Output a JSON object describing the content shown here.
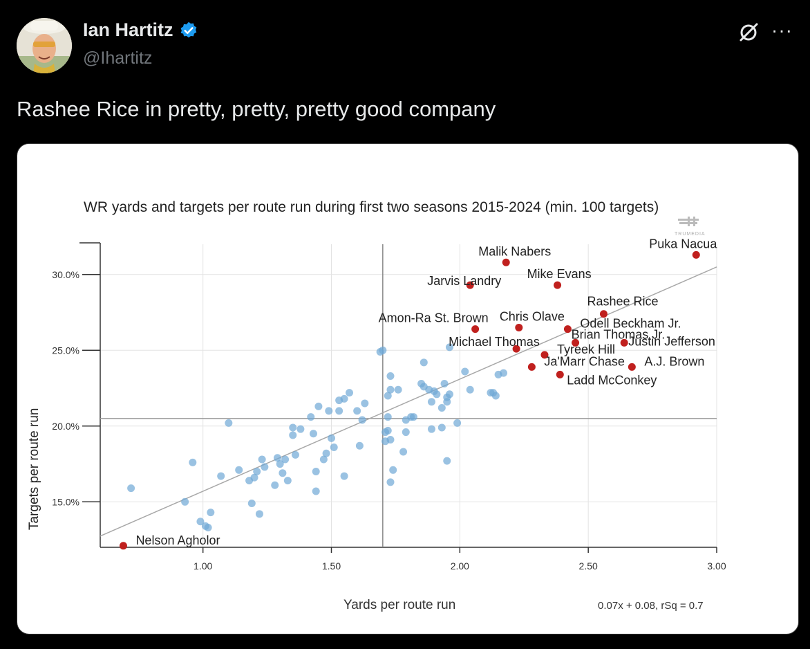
{
  "post": {
    "author_name": "Ian Hartitz",
    "author_handle": "@Ihartitz",
    "text": "Rashee Rice in pretty, pretty, pretty good company",
    "more_label": "···"
  },
  "colors": {
    "verified": "#1d9bf0",
    "highlight": "#c0201e",
    "point": "#6fa8d6"
  },
  "chart_data": {
    "type": "scatter",
    "title": "WR yards and targets per route run during first two seasons 2015-2024 (min. 100 targets)",
    "xlabel": "Yards per route run",
    "ylabel": "Targets per route run",
    "watermark": "TRUMEDIA",
    "xlim": [
      0.6,
      3.0
    ],
    "ylim": [
      12.0,
      32.0
    ],
    "xticks": [
      1.0,
      1.5,
      2.0,
      2.5,
      3.0
    ],
    "xtick_labels": [
      "1.00",
      "1.50",
      "2.00",
      "2.50",
      "3.00"
    ],
    "yticks": [
      15,
      20,
      25,
      30
    ],
    "ytick_labels": [
      "15.0%",
      "20.0%",
      "25.0%",
      "30.0%"
    ],
    "mean_x": 1.7,
    "mean_y": 20.5,
    "trendline": {
      "slope": 7.4,
      "intercept": 8.3,
      "x_range": [
        0.6,
        3.0
      ]
    },
    "trendline_label": "0.07x + 0.08, rSq = 0.7",
    "highlighted": [
      {
        "name": "Nelson Agholor",
        "x": 0.69,
        "y": 12.1
      },
      {
        "name": "Malik Nabers",
        "x": 2.18,
        "y": 30.8
      },
      {
        "name": "Puka Nacua",
        "x": 2.92,
        "y": 31.3
      },
      {
        "name": "Jarvis Landry",
        "x": 2.04,
        "y": 29.3
      },
      {
        "name": "Mike Evans",
        "x": 2.38,
        "y": 29.3
      },
      {
        "name": "Rashee Rice",
        "x": 2.56,
        "y": 27.4
      },
      {
        "name": "Amon-Ra St. Brown",
        "x": 2.06,
        "y": 26.4
      },
      {
        "name": "Chris Olave",
        "x": 2.23,
        "y": 26.5
      },
      {
        "name": "Odell Beckham Jr.",
        "x": 2.42,
        "y": 26.4
      },
      {
        "name": "Michael Thomas",
        "x": 2.22,
        "y": 25.1
      },
      {
        "name": "Brian Thomas Jr.",
        "x": 2.45,
        "y": 25.5
      },
      {
        "name": "Justin Jefferson",
        "x": 2.64,
        "y": 25.5
      },
      {
        "name": "Tyreek Hill",
        "x": 2.33,
        "y": 24.7
      },
      {
        "name": "Ja'Marr Chase",
        "x": 2.28,
        "y": 23.9
      },
      {
        "name": "A.J. Brown",
        "x": 2.67,
        "y": 23.9
      },
      {
        "name": "Ladd McConkey",
        "x": 2.39,
        "y": 23.4
      }
    ],
    "others": [
      [
        0.72,
        15.9
      ],
      [
        0.93,
        15.0
      ],
      [
        0.96,
        17.6
      ],
      [
        0.99,
        13.7
      ],
      [
        1.01,
        13.4
      ],
      [
        1.02,
        13.3
      ],
      [
        1.03,
        14.3
      ],
      [
        1.07,
        16.7
      ],
      [
        1.1,
        20.2
      ],
      [
        1.14,
        17.1
      ],
      [
        1.18,
        16.4
      ],
      [
        1.19,
        14.9
      ],
      [
        1.2,
        16.6
      ],
      [
        1.21,
        17.0
      ],
      [
        1.22,
        14.2
      ],
      [
        1.23,
        17.8
      ],
      [
        1.24,
        17.3
      ],
      [
        1.28,
        16.1
      ],
      [
        1.29,
        17.9
      ],
      [
        1.3,
        17.5
      ],
      [
        1.31,
        16.9
      ],
      [
        1.32,
        17.8
      ],
      [
        1.33,
        16.4
      ],
      [
        1.35,
        19.9
      ],
      [
        1.35,
        19.4
      ],
      [
        1.36,
        18.1
      ],
      [
        1.38,
        19.8
      ],
      [
        1.42,
        20.6
      ],
      [
        1.43,
        19.5
      ],
      [
        1.44,
        15.7
      ],
      [
        1.44,
        17.0
      ],
      [
        1.45,
        21.3
      ],
      [
        1.47,
        17.8
      ],
      [
        1.48,
        18.2
      ],
      [
        1.49,
        21.0
      ],
      [
        1.5,
        19.2
      ],
      [
        1.51,
        18.6
      ],
      [
        1.53,
        21.7
      ],
      [
        1.53,
        21.0
      ],
      [
        1.55,
        16.7
      ],
      [
        1.55,
        21.8
      ],
      [
        1.57,
        22.2
      ],
      [
        1.6,
        21.0
      ],
      [
        1.61,
        18.7
      ],
      [
        1.62,
        20.4
      ],
      [
        1.63,
        21.5
      ],
      [
        1.69,
        24.9
      ],
      [
        1.7,
        25.0
      ],
      [
        1.71,
        19.6
      ],
      [
        1.71,
        19.0
      ],
      [
        1.72,
        19.7
      ],
      [
        1.72,
        20.6
      ],
      [
        1.72,
        22.0
      ],
      [
        1.73,
        23.3
      ],
      [
        1.73,
        22.4
      ],
      [
        1.73,
        19.1
      ],
      [
        1.73,
        16.3
      ],
      [
        1.74,
        17.1
      ],
      [
        1.76,
        22.4
      ],
      [
        1.78,
        18.3
      ],
      [
        1.79,
        20.4
      ],
      [
        1.79,
        19.6
      ],
      [
        1.81,
        20.6
      ],
      [
        1.82,
        20.6
      ],
      [
        1.85,
        22.8
      ],
      [
        1.86,
        24.2
      ],
      [
        1.86,
        22.6
      ],
      [
        1.88,
        22.4
      ],
      [
        1.89,
        21.6
      ],
      [
        1.89,
        19.8
      ],
      [
        1.9,
        22.3
      ],
      [
        1.91,
        22.1
      ],
      [
        1.93,
        21.2
      ],
      [
        1.93,
        19.9
      ],
      [
        1.94,
        22.8
      ],
      [
        1.95,
        21.6
      ],
      [
        1.95,
        21.9
      ],
      [
        1.95,
        17.7
      ],
      [
        1.96,
        22.1
      ],
      [
        1.96,
        25.2
      ],
      [
        1.99,
        20.2
      ],
      [
        2.02,
        23.6
      ],
      [
        2.04,
        22.4
      ],
      [
        2.12,
        22.2
      ],
      [
        2.13,
        22.2
      ],
      [
        2.14,
        22.0
      ],
      [
        2.15,
        23.4
      ],
      [
        2.17,
        23.5
      ]
    ]
  }
}
